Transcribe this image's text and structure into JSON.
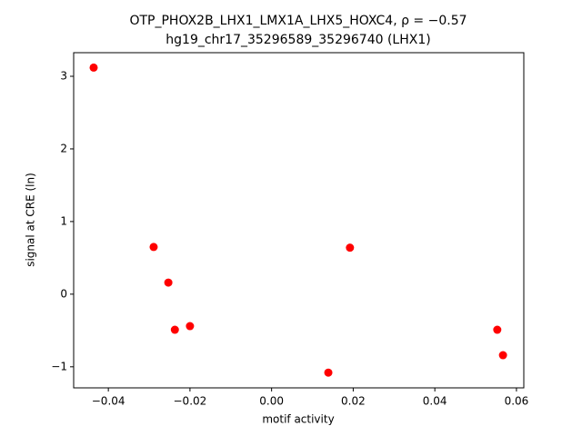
{
  "chart_data": {
    "type": "scatter",
    "title": [
      "OTP_PHOX2B_LHX1_LMX1A_LHX5_HOXC4, ρ = −0.57",
      "hg19_chr17_35296589_35296740 (LHX1)"
    ],
    "x_label": "motif activity",
    "y_label": "signal at CRE (ln)",
    "color": "#ff0000",
    "x": [
      -0.0436,
      -0.0289,
      -0.0253,
      -0.0237,
      -0.02,
      0.0139,
      0.0192,
      0.0553,
      0.0567
    ],
    "values": [
      3.12,
      0.65,
      0.16,
      -0.49,
      -0.44,
      -1.08,
      0.64,
      -0.49,
      -0.84
    ],
    "xlim": [
      -0.0485,
      0.0618
    ],
    "ylim": [
      -1.29,
      3.325
    ],
    "xticks": [
      {
        "value": -0.04,
        "label": "−0.04"
      },
      {
        "value": -0.02,
        "label": "−0.02"
      },
      {
        "value": 0,
        "label": "0.00"
      },
      0.02,
      0.04,
      0.06
    ],
    "yticks": [
      {
        "value": -1,
        "label": "−1"
      },
      0,
      1,
      2,
      3
    ],
    "grid": false
  }
}
